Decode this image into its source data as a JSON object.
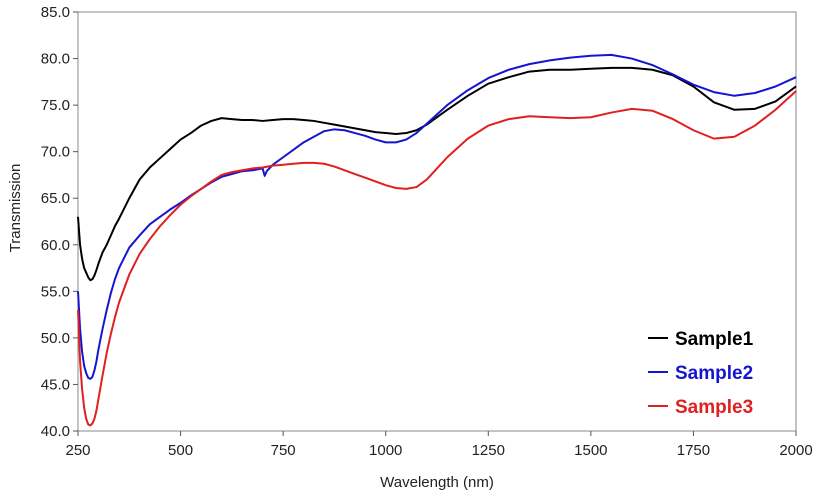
{
  "chart_data": {
    "type": "line",
    "title": "",
    "xlabel": "Wavelength (nm)",
    "ylabel": "Transmission",
    "xlim": [
      250,
      2000
    ],
    "ylim": [
      40,
      85
    ],
    "xticks": [
      250,
      500,
      750,
      1000,
      1250,
      1500,
      1750,
      2000
    ],
    "xtick_labels": [
      "250",
      "500",
      "750",
      "1000",
      "1250",
      "1500",
      "1750",
      "2000"
    ],
    "yticks": [
      40,
      45,
      50,
      55,
      60,
      65,
      70,
      75,
      80,
      85
    ],
    "ytick_labels": [
      "40.0",
      "45.0",
      "50.0",
      "55.0",
      "60.0",
      "65.0",
      "70.0",
      "75.0",
      "80.0",
      "85.0"
    ],
    "grid": false,
    "legend_position": "bottom-right",
    "series": [
      {
        "name": "Sample1",
        "color": "#000000",
        "x": [
          250,
          255,
          260,
          265,
          270,
          275,
          280,
          285,
          290,
          295,
          300,
          310,
          320,
          330,
          340,
          350,
          375,
          400,
          425,
          450,
          475,
          500,
          525,
          550,
          575,
          600,
          625,
          650,
          675,
          700,
          725,
          750,
          775,
          800,
          825,
          850,
          875,
          900,
          925,
          950,
          975,
          1000,
          1025,
          1050,
          1075,
          1100,
          1125,
          1150,
          1200,
          1250,
          1300,
          1350,
          1400,
          1450,
          1500,
          1550,
          1600,
          1650,
          1700,
          1750,
          1800,
          1850,
          1900,
          1950,
          2000
        ],
        "y": [
          63.0,
          60.0,
          58.5,
          57.5,
          57.0,
          56.5,
          56.2,
          56.3,
          56.7,
          57.3,
          58.0,
          59.2,
          60.0,
          61.0,
          62.0,
          62.8,
          65.0,
          67.0,
          68.3,
          69.3,
          70.3,
          71.3,
          72.0,
          72.8,
          73.3,
          73.6,
          73.5,
          73.4,
          73.4,
          73.3,
          73.4,
          73.5,
          73.5,
          73.4,
          73.3,
          73.1,
          72.9,
          72.7,
          72.5,
          72.3,
          72.1,
          72.0,
          71.9,
          72.0,
          72.3,
          72.9,
          73.7,
          74.5,
          76.0,
          77.3,
          78.0,
          78.6,
          78.8,
          78.8,
          78.9,
          79.0,
          79.0,
          78.8,
          78.2,
          77.0,
          75.3,
          74.5,
          74.6,
          75.4,
          77.0
        ]
      },
      {
        "name": "Sample2",
        "color": "#1515d0",
        "x": [
          250,
          255,
          260,
          265,
          270,
          275,
          280,
          285,
          290,
          295,
          300,
          310,
          320,
          330,
          340,
          350,
          375,
          400,
          425,
          450,
          475,
          500,
          525,
          550,
          575,
          600,
          625,
          650,
          675,
          700,
          705,
          710,
          725,
          750,
          775,
          800,
          825,
          850,
          875,
          900,
          925,
          950,
          975,
          1000,
          1025,
          1050,
          1075,
          1100,
          1125,
          1150,
          1200,
          1250,
          1300,
          1350,
          1400,
          1450,
          1500,
          1550,
          1600,
          1650,
          1700,
          1750,
          1800,
          1850,
          1900,
          1950,
          2000
        ],
        "y": [
          55.0,
          51.0,
          48.5,
          47.0,
          46.2,
          45.7,
          45.6,
          45.8,
          46.5,
          47.5,
          48.8,
          51.0,
          53.0,
          54.8,
          56.3,
          57.5,
          59.7,
          61.0,
          62.2,
          63.0,
          63.8,
          64.5,
          65.3,
          66.0,
          66.7,
          67.3,
          67.6,
          67.9,
          68.0,
          68.2,
          67.4,
          67.9,
          68.6,
          69.4,
          70.2,
          71.0,
          71.6,
          72.2,
          72.4,
          72.3,
          72.0,
          71.7,
          71.3,
          71.0,
          71.0,
          71.3,
          72.0,
          73.0,
          74.0,
          75.0,
          76.6,
          77.9,
          78.8,
          79.4,
          79.8,
          80.1,
          80.3,
          80.4,
          80.0,
          79.3,
          78.3,
          77.2,
          76.4,
          76.0,
          76.3,
          77.0,
          78.0
        ]
      },
      {
        "name": "Sample3",
        "color": "#e02020",
        "x": [
          250,
          255,
          260,
          265,
          270,
          275,
          280,
          285,
          290,
          295,
          300,
          310,
          320,
          330,
          340,
          350,
          375,
          400,
          425,
          450,
          475,
          500,
          525,
          550,
          575,
          600,
          625,
          650,
          675,
          700,
          725,
          750,
          775,
          800,
          825,
          850,
          875,
          900,
          925,
          950,
          975,
          1000,
          1025,
          1050,
          1075,
          1100,
          1125,
          1150,
          1200,
          1250,
          1300,
          1350,
          1400,
          1450,
          1500,
          1550,
          1600,
          1650,
          1700,
          1750,
          1800,
          1850,
          1900,
          1950,
          2000
        ],
        "y": [
          53.0,
          47.5,
          44.5,
          42.5,
          41.3,
          40.7,
          40.6,
          40.8,
          41.3,
          42.2,
          43.5,
          46.0,
          48.4,
          50.4,
          52.2,
          53.8,
          56.8,
          59.0,
          60.6,
          62.0,
          63.2,
          64.3,
          65.2,
          66.0,
          66.8,
          67.5,
          67.8,
          68.0,
          68.2,
          68.3,
          68.5,
          68.6,
          68.7,
          68.8,
          68.8,
          68.7,
          68.4,
          68.0,
          67.6,
          67.2,
          66.8,
          66.4,
          66.1,
          66.0,
          66.2,
          67.0,
          68.2,
          69.4,
          71.4,
          72.8,
          73.5,
          73.8,
          73.7,
          73.6,
          73.7,
          74.2,
          74.6,
          74.4,
          73.5,
          72.3,
          71.4,
          71.6,
          72.8,
          74.5,
          76.5
        ]
      }
    ]
  }
}
